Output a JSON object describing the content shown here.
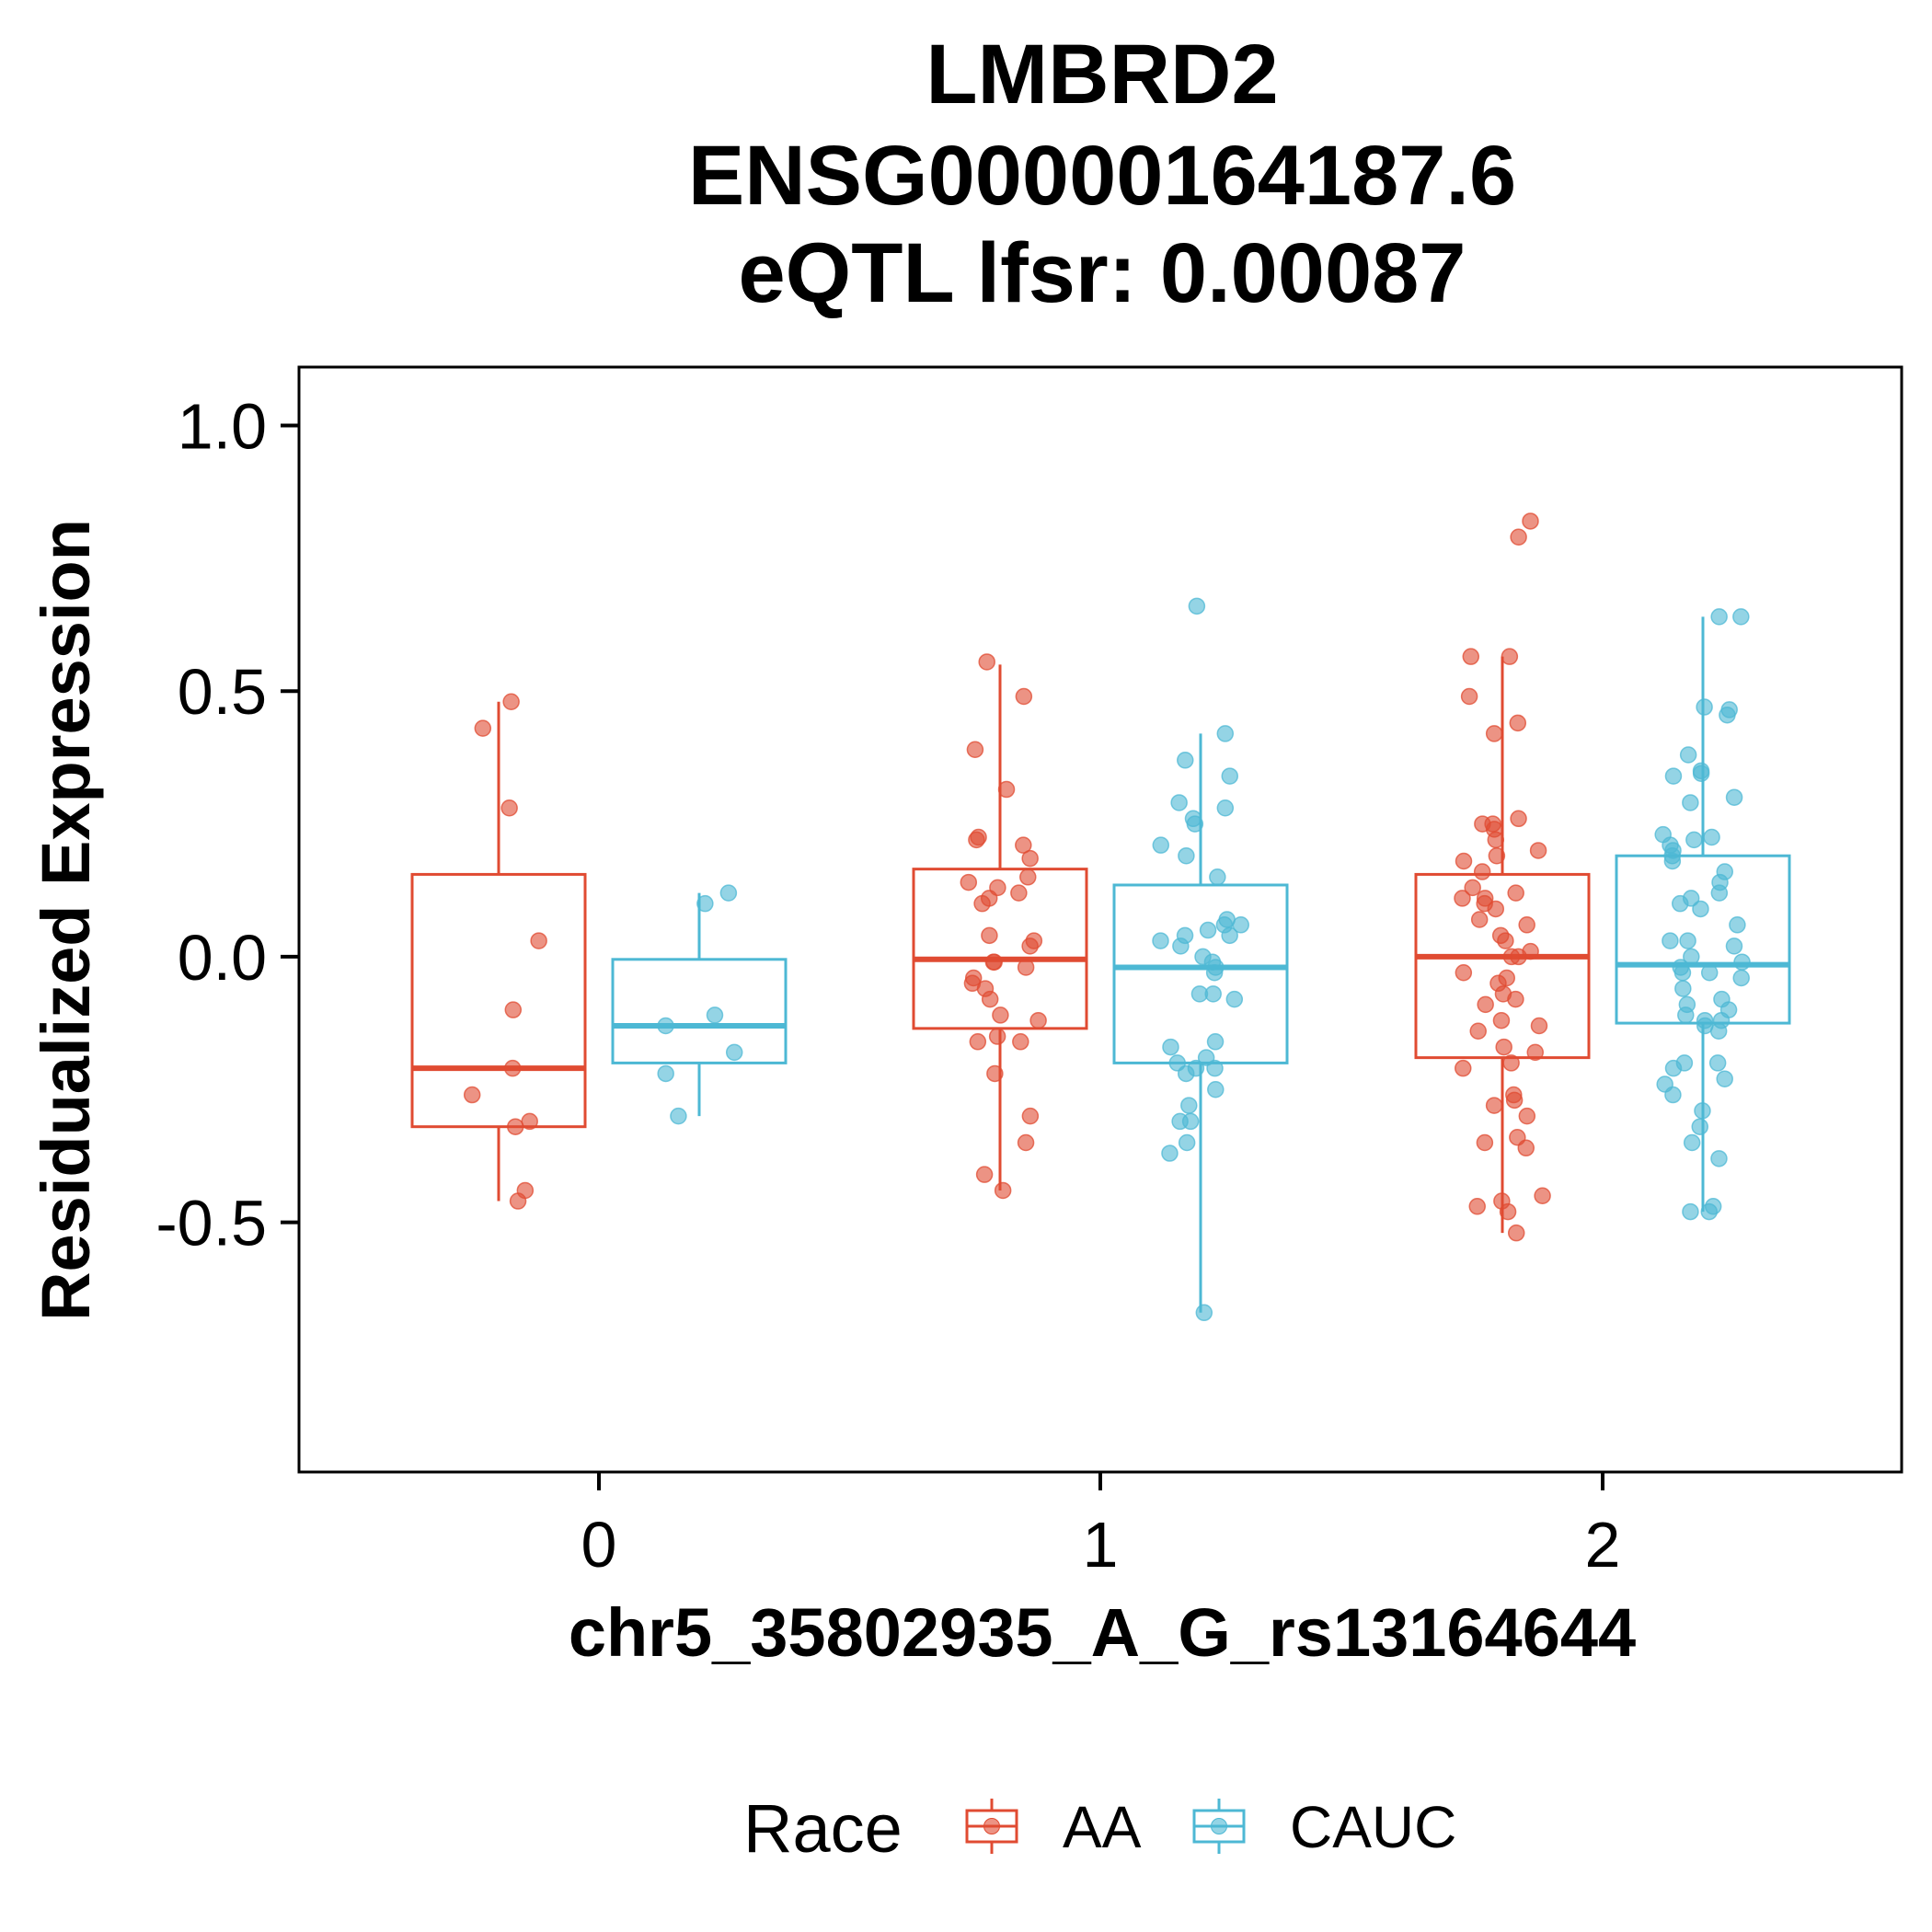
{
  "chart_data": {
    "type": "boxplot",
    "title": [
      "LMBRD2",
      "ENSG00000164187.6",
      "eQTL lfsr: 0.00087"
    ],
    "xlabel": "chr5_35802935_A_G_rs13164644",
    "ylabel": "Residualized Expression",
    "categories": [
      "0",
      "1",
      "2"
    ],
    "ylim": [
      -0.97,
      1.11
    ],
    "yticks": [
      -0.5,
      0.0,
      0.5,
      1.0
    ],
    "ytick_labels": [
      "-0.5",
      "0.0",
      "0.5",
      "1.0"
    ],
    "grid": false,
    "legend": {
      "title": "Race",
      "position": "bottom",
      "entries": [
        "AA",
        "CAUC"
      ]
    },
    "series": [
      {
        "name": "AA",
        "color": "#E04B32",
        "boxes": [
          {
            "category": "0",
            "whisker_low": -0.46,
            "q1": -0.32,
            "median": -0.21,
            "q3": 0.155,
            "whisker_high": 0.48
          },
          {
            "category": "1",
            "whisker_low": -0.44,
            "q1": -0.135,
            "median": -0.005,
            "q3": 0.165,
            "whisker_high": 0.55
          },
          {
            "category": "2",
            "whisker_low": -0.52,
            "q1": -0.19,
            "median": 0.0,
            "q3": 0.155,
            "whisker_high": 0.565
          }
        ],
        "points": [
          {
            "x": "0",
            "y": [
              0.48,
              0.43,
              0.28,
              0.03,
              -0.1,
              -0.21,
              -0.26,
              -0.31,
              -0.32,
              -0.44,
              -0.46
            ]
          },
          {
            "x": "1",
            "y": [
              0.555,
              0.49,
              0.39,
              0.315,
              0.225,
              0.22,
              0.21,
              0.185,
              0.15,
              0.14,
              0.13,
              0.12,
              0.11,
              0.1,
              0.04,
              0.03,
              0.02,
              -0.01,
              -0.01,
              -0.02,
              -0.04,
              -0.05,
              -0.06,
              -0.08,
              -0.11,
              -0.12,
              -0.15,
              -0.16,
              -0.16,
              -0.22,
              -0.3,
              -0.35,
              -0.41,
              -0.44
            ]
          },
          {
            "x": "2",
            "y": [
              0.82,
              0.79,
              0.565,
              0.565,
              0.49,
              0.44,
              0.42,
              0.26,
              0.25,
              0.25,
              0.24,
              0.22,
              0.2,
              0.19,
              0.18,
              0.16,
              0.13,
              0.12,
              0.11,
              0.11,
              0.1,
              0.09,
              0.07,
              0.06,
              0.04,
              0.03,
              0.01,
              0.0,
              0.0,
              -0.03,
              -0.04,
              -0.05,
              -0.07,
              -0.08,
              -0.09,
              -0.12,
              -0.13,
              -0.14,
              -0.17,
              -0.18,
              -0.2,
              -0.21,
              -0.26,
              -0.27,
              -0.28,
              -0.3,
              -0.34,
              -0.35,
              -0.36,
              -0.45,
              -0.46,
              -0.47,
              -0.48,
              -0.52
            ]
          }
        ]
      },
      {
        "name": "CAUC",
        "color": "#4DB8D4",
        "boxes": [
          {
            "category": "0",
            "whisker_low": -0.3,
            "q1": -0.2,
            "median": -0.13,
            "q3": -0.005,
            "whisker_high": 0.12
          },
          {
            "category": "1",
            "whisker_low": -0.67,
            "q1": -0.2,
            "median": -0.02,
            "q3": 0.135,
            "whisker_high": 0.42
          },
          {
            "category": "2",
            "whisker_low": -0.48,
            "q1": -0.125,
            "median": -0.015,
            "q3": 0.19,
            "whisker_high": 0.64
          }
        ],
        "points": [
          {
            "x": "0",
            "y": [
              0.12,
              0.1,
              -0.11,
              -0.13,
              -0.18,
              -0.22,
              -0.3
            ]
          },
          {
            "x": "1",
            "y": [
              0.66,
              0.42,
              0.37,
              0.34,
              0.29,
              0.28,
              0.26,
              0.25,
              0.21,
              0.19,
              0.15,
              0.07,
              0.06,
              0.06,
              0.05,
              0.04,
              0.04,
              0.03,
              0.02,
              0.0,
              -0.01,
              -0.02,
              -0.03,
              -0.07,
              -0.07,
              -0.08,
              -0.16,
              -0.17,
              -0.19,
              -0.2,
              -0.21,
              -0.21,
              -0.22,
              -0.25,
              -0.28,
              -0.31,
              -0.31,
              -0.35,
              -0.37,
              -0.67
            ]
          },
          {
            "x": "2",
            "y": [
              0.64,
              0.64,
              0.47,
              0.465,
              0.455,
              0.38,
              0.35,
              0.345,
              0.34,
              0.3,
              0.29,
              0.23,
              0.225,
              0.22,
              0.21,
              0.2,
              0.19,
              0.18,
              0.16,
              0.14,
              0.12,
              0.11,
              0.1,
              0.09,
              0.06,
              0.03,
              0.03,
              0.02,
              0.0,
              -0.01,
              -0.02,
              -0.03,
              -0.03,
              -0.04,
              -0.06,
              -0.08,
              -0.09,
              -0.1,
              -0.11,
              -0.12,
              -0.12,
              -0.13,
              -0.14,
              -0.2,
              -0.2,
              -0.21,
              -0.23,
              -0.24,
              -0.26,
              -0.29,
              -0.32,
              -0.35,
              -0.38,
              -0.47,
              -0.48,
              -0.48
            ]
          }
        ]
      }
    ]
  }
}
